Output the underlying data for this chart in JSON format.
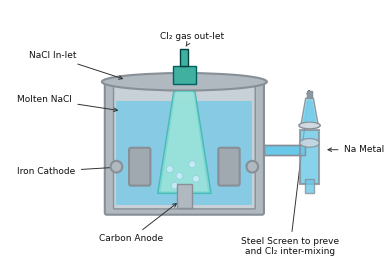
{
  "bg_color": "#ffffff",
  "cell_color": "#b0b8c0",
  "cell_dark": "#888f96",
  "cell_highlight": "#d0d8e0",
  "liquid_color": "#6ac8e8",
  "liquid_light": "#9adcf0",
  "teal_color": "#3db8b0",
  "teal_light": "#7dd8d0",
  "pipe_color": "#8899aa",
  "cathode_color": "#a0a8b0",
  "anode_color": "#c0c8d0",
  "bubble_color": "#c8eef8",
  "label_fontsize": 6.5,
  "title_present": false,
  "labels": {
    "nacl_inlet": "NaCl In-let",
    "cl2_outlet": "Cl₂ gas out-let",
    "molten_nacl": "Molten NaCl",
    "iron_cathode": "Iron Cathode",
    "carbon_anode": "Carbon Anode",
    "na_metal": "Na Metal",
    "steel_screen": "Steel Screen to preve\nand Cl₂ inter-mixing"
  }
}
